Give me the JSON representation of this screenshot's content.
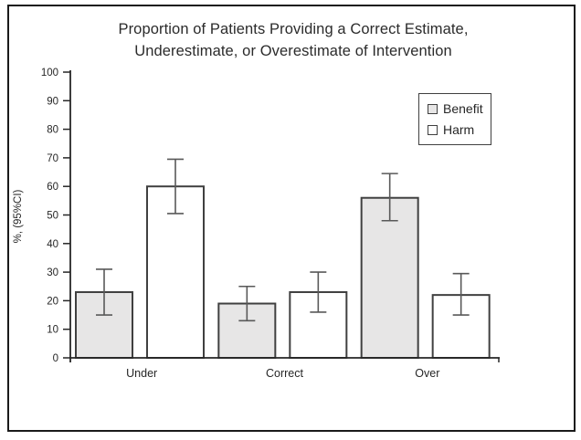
{
  "chart_data": {
    "type": "bar",
    "title": "Proportion of Patients Providing a Correct Estimate, Underestimate, or Overestimate of Intervention",
    "title_lines": [
      "Proportion of Patients Providing a Correct Estimate,",
      "Underestimate, or Overestimate of Intervention"
    ],
    "xlabel": "",
    "ylabel": "%, (95%CI)",
    "ylim": [
      0,
      100
    ],
    "yticks": [
      0,
      10,
      20,
      30,
      40,
      50,
      60,
      70,
      80,
      90,
      100
    ],
    "categories": [
      "Under",
      "Correct",
      "Over"
    ],
    "series": [
      {
        "name": "Benefit",
        "fill": "#e7e6e6",
        "values": [
          23,
          19,
          56
        ],
        "ci_low": [
          15,
          13,
          48
        ],
        "ci_high": [
          31,
          25,
          64.5
        ]
      },
      {
        "name": "Harm",
        "fill": "#ffffff",
        "values": [
          60,
          23,
          22
        ],
        "ci_low": [
          50.5,
          16,
          15
        ],
        "ci_high": [
          69.5,
          30,
          29.5
        ]
      }
    ],
    "grid": false,
    "error_bars": true,
    "legend_position": "inside-top-right",
    "colors": {
      "bar_border": "#404040",
      "error_bar": "#595959",
      "axis": "#262626",
      "text": "#262626",
      "frame": "#1a1a1a"
    }
  }
}
